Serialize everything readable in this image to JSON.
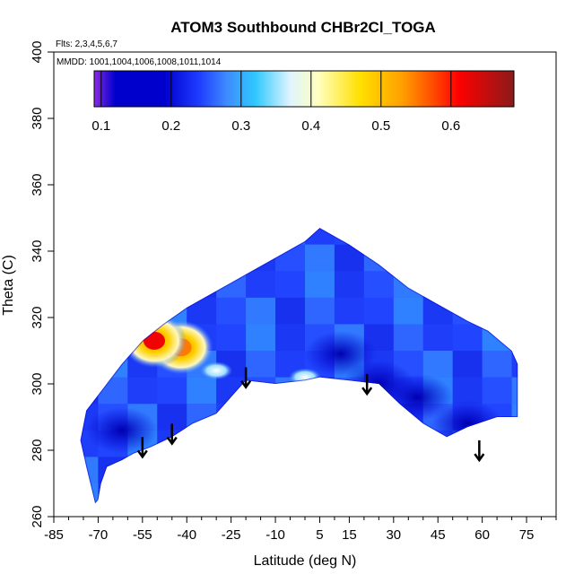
{
  "chart_data": {
    "type": "heatmap",
    "title": "ATOM3 Southbound CHBr2Cl_TOGA",
    "flights_note": "Flts: 2,3,4,5,6,7",
    "mmdd_note": "MMDD: 1001,1004,1006,1008,1011,1014",
    "xlabel": "Latitude (deg N)",
    "ylabel": "Theta (C)",
    "xlim": [
      -85,
      85
    ],
    "ylim": [
      260,
      400
    ],
    "x_major_ticks": [
      -85,
      -70,
      -55,
      -40,
      -25,
      -10,
      5,
      15,
      30,
      45,
      60,
      75
    ],
    "x_major_tick_labels": [
      "-85",
      "-70",
      "-55",
      "-40",
      "-25",
      "-10",
      "5",
      "15",
      "30",
      "45",
      "60",
      "75"
    ],
    "x_minor_step": 5,
    "y_ticks": [
      260,
      280,
      300,
      320,
      340,
      360,
      380,
      400
    ],
    "y_tick_labels": [
      "260",
      "280",
      "300",
      "320",
      "340",
      "360",
      "380",
      "400"
    ],
    "colorbar": {
      "range": [
        0.09,
        0.69
      ],
      "ticks": [
        0.1,
        0.2,
        0.3,
        0.4,
        0.5,
        0.6
      ],
      "tick_labels": [
        "0.1",
        "0.2",
        "0.3",
        "0.4",
        "0.5",
        "0.6"
      ],
      "colors": [
        "#8a2be2",
        "#0000cd",
        "#0000cd",
        "#1e3cff",
        "#3f8cff",
        "#2ec8ff",
        "#dff4ff",
        "#ffffc0",
        "#ffe000",
        "#ffa000",
        "#ff4000",
        "#ff0000",
        "#8b1a1a"
      ],
      "color_stops": [
        0.09,
        0.12,
        0.19,
        0.24,
        0.28,
        0.32,
        0.37,
        0.41,
        0.47,
        0.53,
        0.58,
        0.61,
        0.69
      ]
    },
    "curtain_outline": [
      [
        -71,
        264
      ],
      [
        -74,
        275
      ],
      [
        -76,
        283
      ],
      [
        -74,
        292
      ],
      [
        -68,
        299
      ],
      [
        -62,
        306
      ],
      [
        -55,
        313
      ],
      [
        -48,
        318
      ],
      [
        -40,
        323
      ],
      [
        -30,
        328
      ],
      [
        -20,
        333
      ],
      [
        -10,
        338
      ],
      [
        0,
        343
      ],
      [
        5,
        347
      ],
      [
        15,
        342
      ],
      [
        25,
        336
      ],
      [
        35,
        329
      ],
      [
        45,
        324
      ],
      [
        55,
        319
      ],
      [
        62,
        316
      ],
      [
        70,
        310
      ],
      [
        72,
        306
      ],
      [
        72,
        290
      ],
      [
        65,
        290
      ],
      [
        55,
        287
      ],
      [
        48,
        284
      ],
      [
        40,
        288
      ],
      [
        32,
        294
      ],
      [
        25,
        300
      ],
      [
        15,
        301
      ],
      [
        5,
        302
      ],
      [
        0,
        301
      ],
      [
        -10,
        300
      ],
      [
        -20,
        301
      ],
      [
        -25,
        296
      ],
      [
        -30,
        291
      ],
      [
        -38,
        288
      ],
      [
        -45,
        284
      ],
      [
        -52,
        281
      ],
      [
        -58,
        279
      ],
      [
        -62,
        277
      ],
      [
        -67,
        275
      ],
      [
        -69,
        270
      ],
      [
        -70,
        265
      ]
    ],
    "features": [
      {
        "type": "hotspot",
        "lat": -42,
        "theta": 311,
        "value": 0.55
      },
      {
        "type": "hotspot",
        "lat": -51,
        "theta": 313,
        "value": 0.62
      },
      {
        "type": "low",
        "lat": 12,
        "theta": 309,
        "value": 0.17
      },
      {
        "type": "low",
        "lat": 25,
        "theta": 300,
        "value": 0.18
      },
      {
        "type": "low",
        "lat": -62,
        "theta": 286,
        "value": 0.18
      },
      {
        "type": "low",
        "lat": 38,
        "theta": 296,
        "value": 0.18
      },
      {
        "type": "low",
        "lat": 55,
        "theta": 288,
        "value": 0.18
      },
      {
        "type": "highlight",
        "lat": -30,
        "theta": 304,
        "value": 0.38
      },
      {
        "type": "highlight",
        "lat": 0,
        "theta": 302,
        "value": 0.34
      }
    ],
    "arrows": [
      {
        "lat": -55,
        "theta": 284
      },
      {
        "lat": -45,
        "theta": 288
      },
      {
        "lat": -20,
        "theta": 305
      },
      {
        "lat": 21,
        "theta": 303
      },
      {
        "lat": 59,
        "theta": 283
      }
    ],
    "grid": false,
    "legend": "colorbar top"
  }
}
